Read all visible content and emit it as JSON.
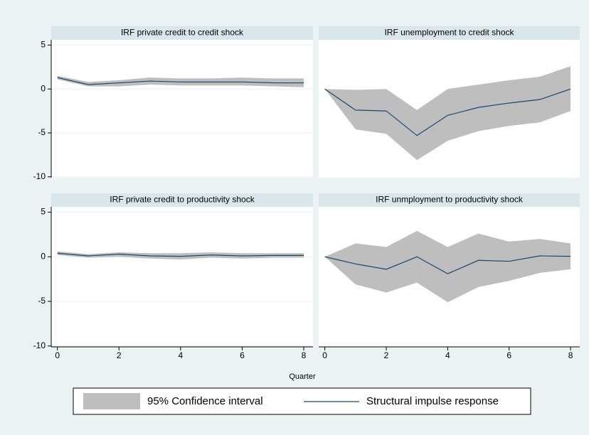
{
  "chart_data": [
    {
      "type": "line",
      "title": "IRF private credit to credit shock",
      "x": [
        0,
        1,
        2,
        3,
        4,
        5,
        6,
        7,
        8
      ],
      "values": [
        1.3,
        0.5,
        0.7,
        0.9,
        0.8,
        0.8,
        0.8,
        0.7,
        0.7
      ],
      "ci_lower": [
        1.1,
        0.3,
        0.3,
        0.5,
        0.4,
        0.4,
        0.4,
        0.3,
        0.2
      ],
      "ci_upper": [
        1.5,
        0.8,
        1.0,
        1.3,
        1.2,
        1.2,
        1.3,
        1.2,
        1.2
      ],
      "xlim": [
        -0.2,
        8.3
      ],
      "ylim": [
        -10.1,
        5.6
      ],
      "yticks": [
        5,
        0,
        -5,
        -10
      ]
    },
    {
      "type": "line",
      "title": "IRF unemployment to credit shock",
      "x": [
        0,
        1,
        2,
        3,
        4,
        5,
        6,
        7,
        8
      ],
      "values": [
        0,
        -2.4,
        -2.5,
        -5.3,
        -3,
        -2.1,
        -1.6,
        -1.2,
        0
      ],
      "ci_lower": [
        0,
        -4.6,
        -5.1,
        -8.1,
        -5.9,
        -4.8,
        -4.2,
        -3.8,
        -2.5
      ],
      "ci_upper": [
        0,
        -0.1,
        0,
        -2.4,
        0,
        0.5,
        1.0,
        1.4,
        2.6
      ],
      "xlim": [
        -0.2,
        8.3
      ],
      "ylim": [
        -10.1,
        5.6
      ]
    },
    {
      "type": "line",
      "title": "IRF private credit to productivity shock",
      "x": [
        0,
        1,
        2,
        3,
        4,
        5,
        6,
        7,
        8
      ],
      "values": [
        0.4,
        0.1,
        0.3,
        0.1,
        0.05,
        0.2,
        0.1,
        0.15,
        0.15
      ],
      "ci_lower": [
        0.2,
        -0.1,
        0,
        -0.2,
        -0.3,
        -0.1,
        -0.2,
        -0.1,
        -0.1
      ],
      "ci_upper": [
        0.6,
        0.3,
        0.5,
        0.4,
        0.4,
        0.5,
        0.4,
        0.4,
        0.4
      ],
      "xlim": [
        -0.2,
        8.3
      ],
      "ylim": [
        -10.1,
        5.6
      ],
      "yticks": [
        5,
        0,
        -5,
        -10
      ],
      "xticks": [
        0,
        2,
        4,
        6,
        8
      ]
    },
    {
      "type": "line",
      "title": "IRF unmployment to productivity shock",
      "x": [
        0,
        1,
        2,
        3,
        4,
        5,
        6,
        7,
        8
      ],
      "values": [
        0,
        -0.8,
        -1.4,
        0,
        -1.9,
        -0.4,
        -0.5,
        0.1,
        0.05
      ],
      "ci_lower": [
        0,
        -3.1,
        -4,
        -2.9,
        -5.1,
        -3.4,
        -2.7,
        -1.8,
        -1.4
      ],
      "ci_upper": [
        0,
        1.5,
        1.1,
        2.9,
        1.1,
        2.6,
        1.7,
        2.0,
        1.5
      ],
      "xlim": [
        -0.2,
        8.3
      ],
      "ylim": [
        -10.1,
        5.6
      ],
      "xticks": [
        0,
        2,
        4,
        6,
        8
      ]
    }
  ],
  "x_label": "Quarter",
  "legend": [
    {
      "name": "95% Confidence interval",
      "color": "#bebebe"
    },
    {
      "name": "Structural impulse response",
      "color": "#1a476f"
    }
  ]
}
